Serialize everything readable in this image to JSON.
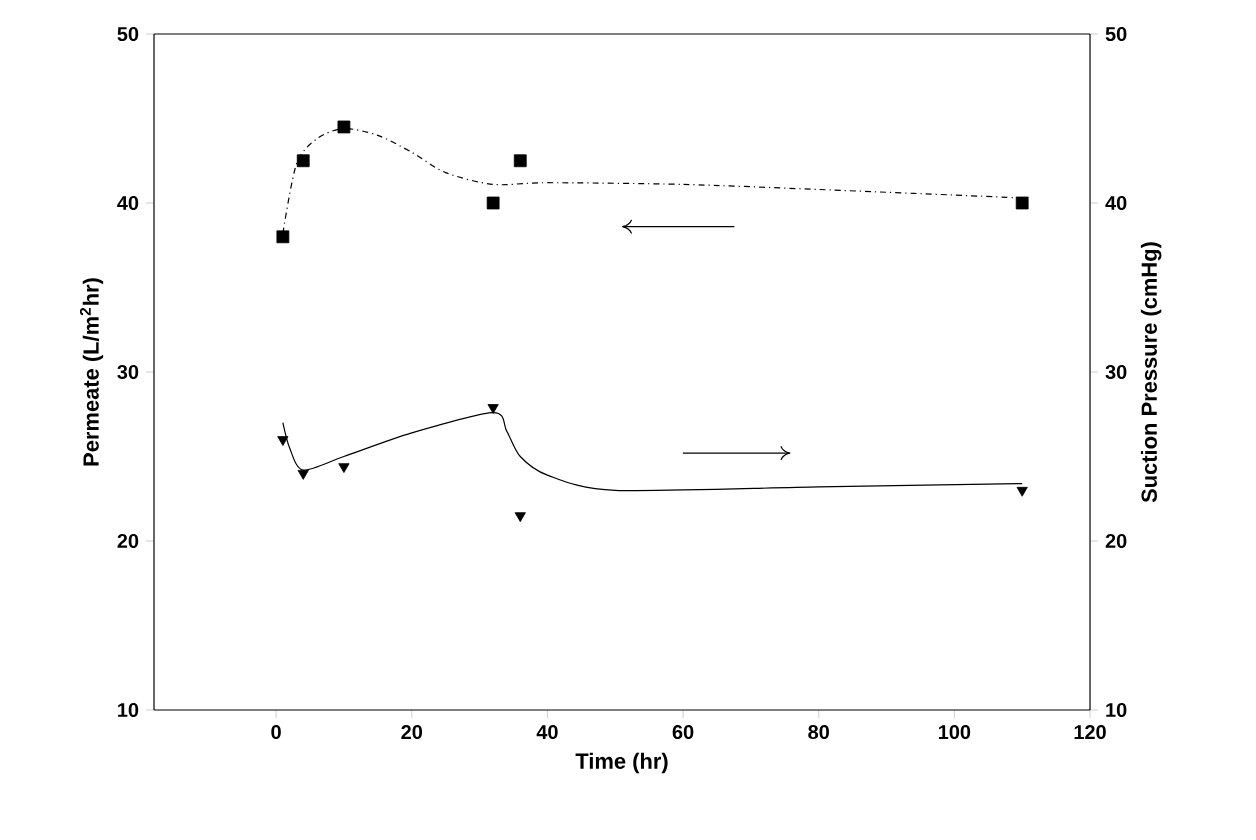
{
  "chart_data": {
    "type": "scatter",
    "xlabel": "Time (hr)",
    "ylabel": "Permeate (L/m$^{2}$hr)",
    "y2label": "Suction Pressure (cmHg)",
    "xlim": [
      -18,
      120
    ],
    "xticks": [
      0,
      20,
      40,
      60,
      80,
      100,
      120
    ],
    "ylim": [
      10,
      50
    ],
    "yticks": [
      10,
      20,
      30,
      40,
      50
    ],
    "y2lim": [
      10,
      50
    ],
    "y2ticks": [
      10,
      20,
      30,
      40,
      50
    ],
    "series": [
      {
        "color": "#000000",
        "marker": "square",
        "x": [
          1,
          4,
          10,
          32,
          36,
          110
        ],
        "values": [
          38.0,
          42.5,
          44.5,
          40.0,
          42.5,
          40.0
        ]
      },
      {
        "type": "line",
        "color": "#000000",
        "line_style": "dashed",
        "x": [
          1,
          3,
          6,
          10,
          15,
          20,
          25,
          32,
          40,
          60,
          80,
          110
        ],
        "values": [
          38.2,
          42.3,
          43.8,
          44.4,
          44.0,
          43.0,
          41.8,
          41.1,
          41.2,
          41.1,
          40.8,
          40.3
        ]
      },
      {
        "axis": "y2",
        "color": "#000000",
        "marker": "triangle",
        "x": [
          1,
          4,
          10,
          32,
          36,
          110
        ],
        "values": [
          26.0,
          24.0,
          24.4,
          27.9,
          21.5,
          23.0
        ]
      },
      {
        "type": "line",
        "axis": "y2",
        "color": "#000000",
        "line_style": "solid",
        "x": [
          1,
          2,
          4,
          10,
          20,
          32,
          34,
          36,
          40,
          50,
          80,
          110
        ],
        "values": [
          27.0,
          25.5,
          24.2,
          25.0,
          26.4,
          27.6,
          26.5,
          25.0,
          23.9,
          23.0,
          23.2,
          23.4
        ]
      }
    ]
  }
}
